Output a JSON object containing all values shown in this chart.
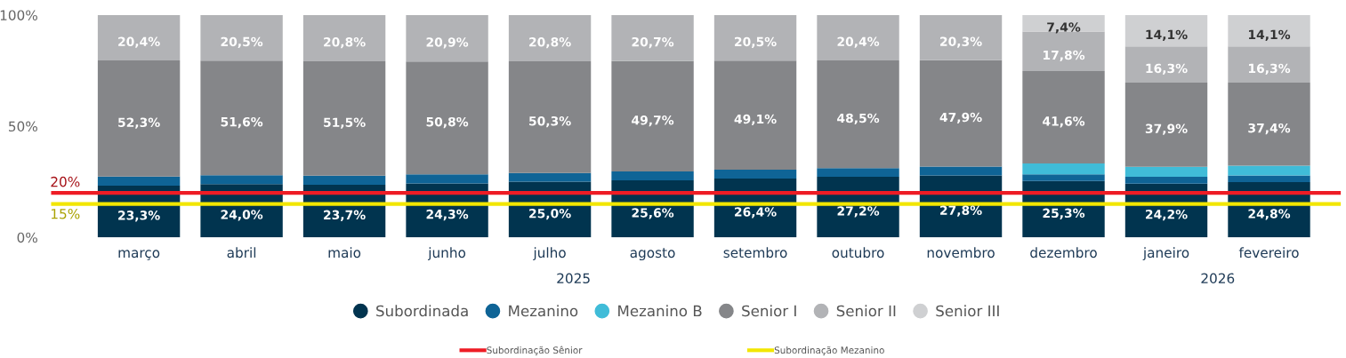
{
  "chart_data": {
    "type": "bar",
    "stacked": true,
    "categories": [
      "março",
      "abril",
      "maio",
      "junho",
      "julho",
      "agosto",
      "setembro",
      "outubro",
      "novembro",
      "dezembro",
      "janeiro",
      "fevereiro"
    ],
    "series": [
      {
        "name": "Subordinada",
        "color": "#01344f",
        "values": [
          23.3,
          24.0,
          23.7,
          24.3,
          25.0,
          25.6,
          26.4,
          27.2,
          27.8,
          25.3,
          24.2,
          24.8
        ],
        "value_labels": [
          "23,3%",
          "24,0%",
          "23,7%",
          "24,3%",
          "25,0%",
          "25,6%",
          "26,4%",
          "27,2%",
          "27,8%",
          "25,3%",
          "24,2%",
          "24,8%"
        ]
      },
      {
        "name": "Mezanino",
        "color": "#0f6496",
        "values": [
          4.0,
          3.9,
          4.0,
          4.0,
          3.9,
          4.0,
          4.0,
          3.9,
          4.0,
          3.0,
          3.0,
          3.0
        ]
      },
      {
        "name": "Mezanino B",
        "color": "#40bcd8",
        "values": [
          null,
          null,
          null,
          null,
          null,
          null,
          null,
          null,
          null,
          4.9,
          4.5,
          4.4
        ]
      },
      {
        "name": "Senior I",
        "color": "#858689",
        "values": [
          52.3,
          51.6,
          51.5,
          50.8,
          50.3,
          49.7,
          49.1,
          48.5,
          47.9,
          41.6,
          37.9,
          37.4
        ],
        "value_labels": [
          "52,3%",
          "51,6%",
          "51,5%",
          "50,8%",
          "50,3%",
          "49,7%",
          "49,1%",
          "48,5%",
          "47,9%",
          "41,6%",
          "37,9%",
          "37,4%"
        ]
      },
      {
        "name": "Senior II",
        "color": "#b2b3b6",
        "values": [
          20.4,
          20.5,
          20.8,
          20.9,
          20.8,
          20.7,
          20.5,
          20.4,
          20.3,
          17.8,
          16.3,
          16.3
        ],
        "value_labels": [
          "20,4%",
          "20,5%",
          "20,8%",
          "20,9%",
          "20,8%",
          "20,7%",
          "20,5%",
          "20,4%",
          "20,3%",
          "17,8%",
          "16,3%",
          "16,3%"
        ]
      },
      {
        "name": "Senior III",
        "color": "#cfd0d2",
        "values": [
          null,
          null,
          null,
          null,
          null,
          null,
          null,
          null,
          null,
          7.4,
          14.1,
          14.1
        ],
        "value_labels": [
          null,
          null,
          null,
          null,
          null,
          null,
          null,
          null,
          null,
          "7,4%",
          "14,1%",
          "14,1%"
        ]
      }
    ],
    "ylim": [
      0,
      100
    ],
    "yticks": [
      {
        "value": 0,
        "label": "0%"
      },
      {
        "value": 50,
        "label": "50%"
      },
      {
        "value": 100,
        "label": "100%"
      }
    ],
    "ref_lines": [
      {
        "axis": "y",
        "value": 20,
        "label": "Subordinação Sênior",
        "color": "#ee1c25"
      },
      {
        "axis": "y",
        "value": 15,
        "label": "Subordinação Mezanino",
        "color": "#f2e600"
      }
    ],
    "annotations": [
      {
        "text": "20%",
        "y": 20
      },
      {
        "text": "15%",
        "y": 15
      },
      "2025",
      "2026"
    ],
    "legend": "bottom",
    "grid": false
  }
}
